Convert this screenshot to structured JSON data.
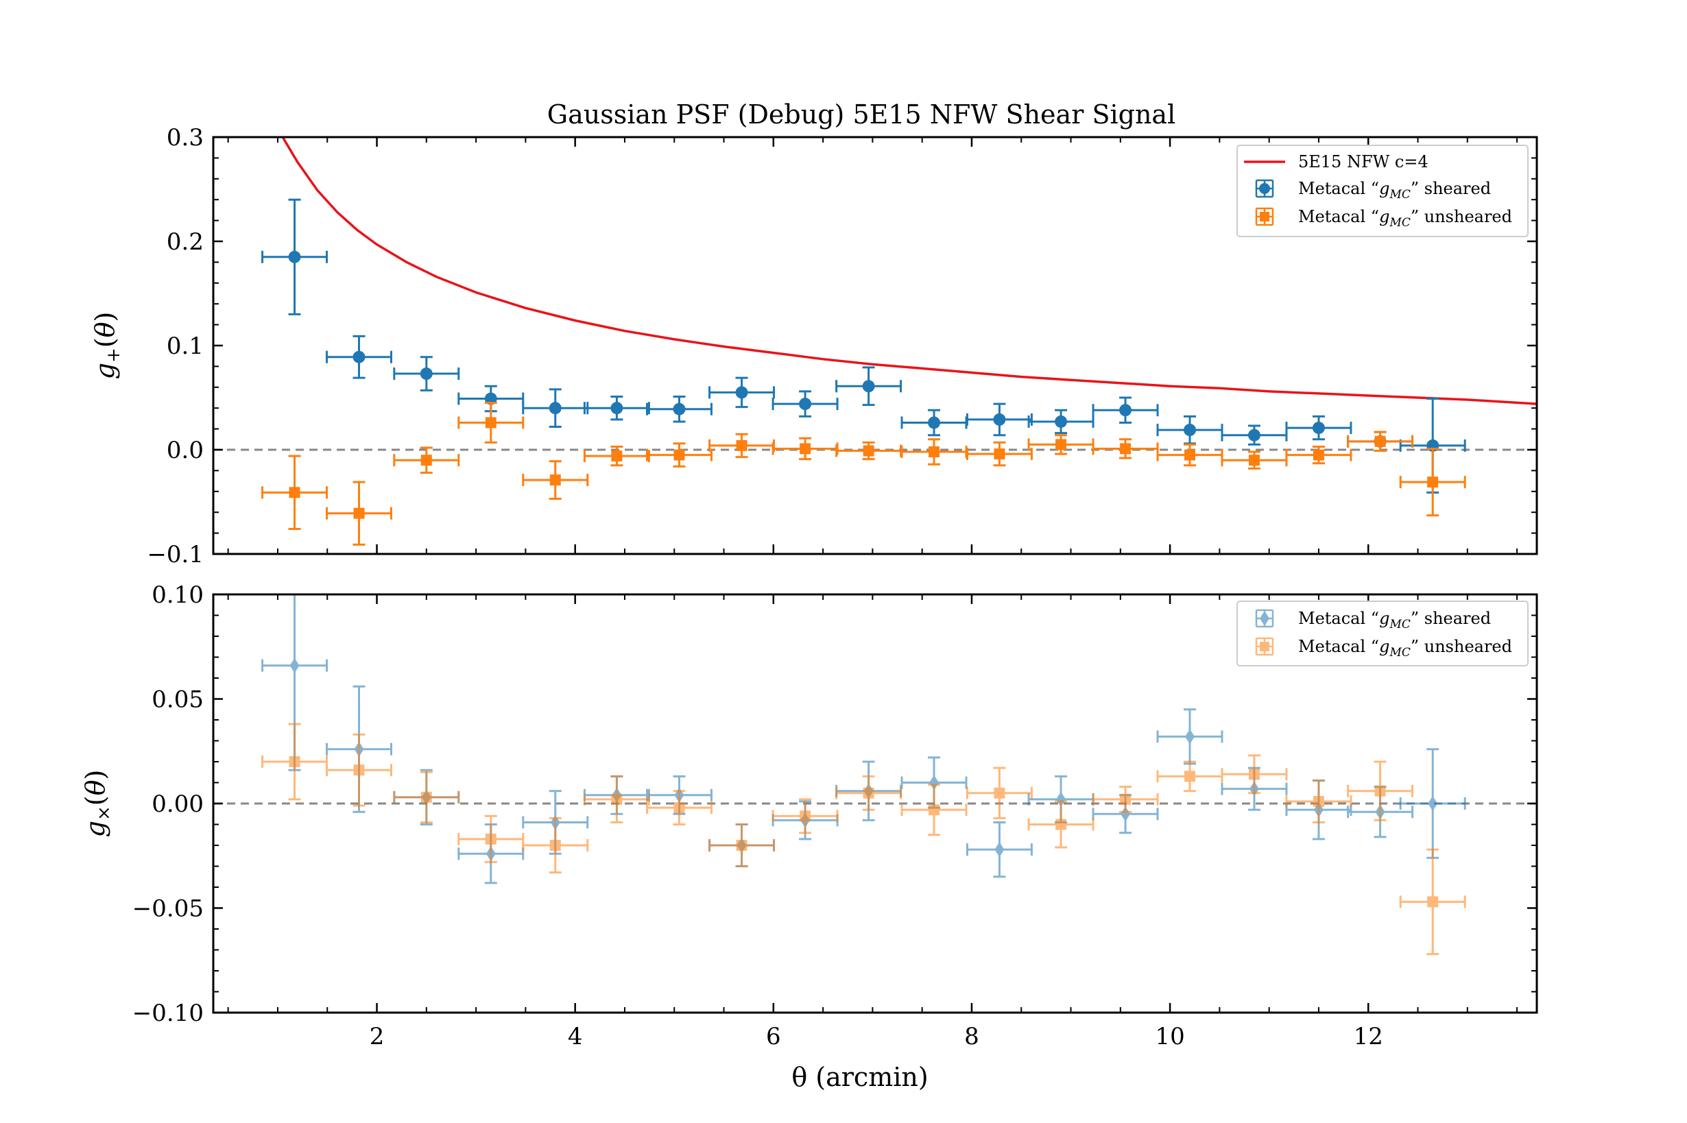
{
  "chart_data": [
    {
      "type": "scatter",
      "title": "Gaussian PSF (Debug) 5E15 NFW Shear Signal",
      "xlabel": "",
      "ylabel": "g₊(θ)",
      "xlim": [
        0.35,
        13.7
      ],
      "ylim": [
        -0.1,
        0.3
      ],
      "yticks": [
        -0.1,
        0.0,
        0.1,
        0.2,
        0.3
      ],
      "ytick_labels": [
        "−0.1",
        "0.0",
        "0.1",
        "0.2",
        "0.3"
      ],
      "reference_line": 0.0,
      "x_err": 0.325,
      "legend_position": "upper right",
      "model": {
        "name": "5E15 NFW c=4",
        "color": "#e8141a",
        "x": [
          1.05,
          1.2,
          1.4,
          1.6,
          1.8,
          2.0,
          2.3,
          2.6,
          3.0,
          3.5,
          4.0,
          4.5,
          5.0,
          5.5,
          6.0,
          6.5,
          7.0,
          7.5,
          8.0,
          8.5,
          9.0,
          9.5,
          10.0,
          10.5,
          11.0,
          11.5,
          12.0,
          12.5,
          13.0,
          13.7
        ],
        "y": [
          0.3,
          0.276,
          0.249,
          0.228,
          0.211,
          0.197,
          0.18,
          0.166,
          0.151,
          0.136,
          0.124,
          0.114,
          0.106,
          0.099,
          0.093,
          0.087,
          0.082,
          0.078,
          0.074,
          0.07,
          0.067,
          0.064,
          0.061,
          0.059,
          0.056,
          0.054,
          0.052,
          0.05,
          0.048,
          0.044
        ]
      },
      "series": [
        {
          "name": "Metacal “g_MC” sheared",
          "color": "#1f77b4",
          "marker": "circle",
          "x": [
            1.17,
            1.82,
            2.5,
            3.15,
            3.8,
            4.42,
            5.05,
            5.68,
            6.32,
            6.96,
            7.62,
            8.28,
            8.9,
            9.55,
            10.2,
            10.85,
            11.5,
            12.12,
            12.65
          ],
          "y": [
            0.185,
            0.089,
            0.073,
            0.049,
            0.04,
            0.04,
            0.039,
            0.055,
            0.044,
            0.061,
            0.026,
            0.029,
            0.027,
            0.038,
            0.019,
            0.014,
            0.021,
            0.008,
            0.004
          ],
          "yerr": [
            0.055,
            0.02,
            0.016,
            0.012,
            0.018,
            0.011,
            0.012,
            0.014,
            0.012,
            0.018,
            0.012,
            0.015,
            0.011,
            0.012,
            0.013,
            0.009,
            0.011,
            0.009,
            0.045
          ]
        },
        {
          "name": "Metacal “g_MC” unsheared",
          "color": "#ff7f0e",
          "marker": "square",
          "x": [
            1.17,
            1.82,
            2.5,
            3.15,
            3.8,
            4.42,
            5.05,
            5.68,
            6.32,
            6.96,
            7.62,
            8.28,
            8.9,
            9.55,
            10.2,
            10.85,
            11.5,
            12.12,
            12.65
          ],
          "y": [
            -0.041,
            -0.061,
            -0.01,
            0.026,
            -0.029,
            -0.006,
            -0.005,
            0.004,
            0.001,
            -0.001,
            -0.002,
            -0.004,
            0.005,
            0.001,
            -0.005,
            -0.01,
            -0.005,
            0.008,
            -0.031
          ],
          "yerr": [
            0.035,
            0.03,
            0.012,
            0.019,
            0.018,
            0.009,
            0.011,
            0.011,
            0.01,
            0.008,
            0.012,
            0.011,
            0.009,
            0.009,
            0.01,
            0.008,
            0.008,
            0.009,
            0.032
          ]
        }
      ]
    },
    {
      "type": "scatter",
      "title": "",
      "xlabel": "θ (arcmin)",
      "ylabel": "g×(θ)",
      "xlim": [
        0.35,
        13.7
      ],
      "ylim": [
        -0.1,
        0.1
      ],
      "xticks": [
        2,
        4,
        6,
        8,
        10,
        12
      ],
      "xtick_labels": [
        "2",
        "4",
        "6",
        "8",
        "10",
        "12"
      ],
      "yticks": [
        -0.1,
        -0.05,
        0.0,
        0.05,
        0.1
      ],
      "ytick_labels": [
        "−0.10",
        "−0.05",
        "0.00",
        "0.05",
        "0.10"
      ],
      "reference_line": 0.0,
      "x_err": 0.325,
      "legend_position": "upper right",
      "series": [
        {
          "name": "Metacal “g_MC” sheared",
          "color": "#1f77b4",
          "marker": "diamond",
          "alpha": 0.55,
          "x": [
            1.17,
            1.82,
            2.5,
            3.15,
            3.8,
            4.42,
            5.05,
            5.68,
            6.32,
            6.96,
            7.62,
            8.28,
            8.9,
            9.55,
            10.2,
            10.85,
            11.5,
            12.12,
            12.65
          ],
          "y": [
            0.066,
            0.026,
            0.003,
            -0.024,
            -0.009,
            0.004,
            0.004,
            -0.02,
            -0.008,
            0.006,
            0.01,
            -0.022,
            0.002,
            -0.005,
            0.032,
            0.007,
            -0.003,
            -0.004,
            0.0
          ],
          "yerr": [
            0.05,
            0.03,
            0.013,
            0.014,
            0.015,
            0.009,
            0.009,
            0.01,
            0.009,
            0.014,
            0.012,
            0.013,
            0.011,
            0.009,
            0.013,
            0.01,
            0.014,
            0.012,
            0.026
          ]
        },
        {
          "name": "Metacal “g_MC” unsheared",
          "color": "#ff7f0e",
          "marker": "square",
          "alpha": 0.55,
          "x": [
            1.17,
            1.82,
            2.5,
            3.15,
            3.8,
            4.42,
            5.05,
            5.68,
            6.32,
            6.96,
            7.62,
            8.28,
            8.9,
            9.55,
            10.2,
            10.85,
            11.5,
            12.12,
            12.65
          ],
          "y": [
            0.02,
            0.016,
            0.003,
            -0.017,
            -0.02,
            0.002,
            -0.002,
            -0.02,
            -0.006,
            0.005,
            -0.003,
            0.005,
            -0.01,
            0.002,
            0.013,
            0.014,
            0.001,
            0.006,
            -0.047
          ],
          "yerr": [
            0.018,
            0.017,
            0.012,
            0.011,
            0.013,
            0.011,
            0.008,
            0.01,
            0.008,
            0.008,
            0.012,
            0.012,
            0.011,
            0.006,
            0.007,
            0.009,
            0.01,
            0.014,
            0.025
          ]
        }
      ]
    }
  ],
  "legend": {
    "top": [
      {
        "label": "5E15 NFW c=4"
      },
      {
        "label_pre": "Metacal “",
        "label_var": "g",
        "label_sub": "MC",
        "label_post": "” sheared"
      },
      {
        "label_pre": "Metacal “",
        "label_var": "g",
        "label_sub": "MC",
        "label_post": "” unsheared"
      }
    ],
    "bottom": [
      {
        "label_pre": "Metacal “",
        "label_var": "g",
        "label_sub": "MC",
        "label_post": "” sheared"
      },
      {
        "label_pre": "Metacal “",
        "label_var": "g",
        "label_sub": "MC",
        "label_post": "” unsheared"
      }
    ]
  }
}
